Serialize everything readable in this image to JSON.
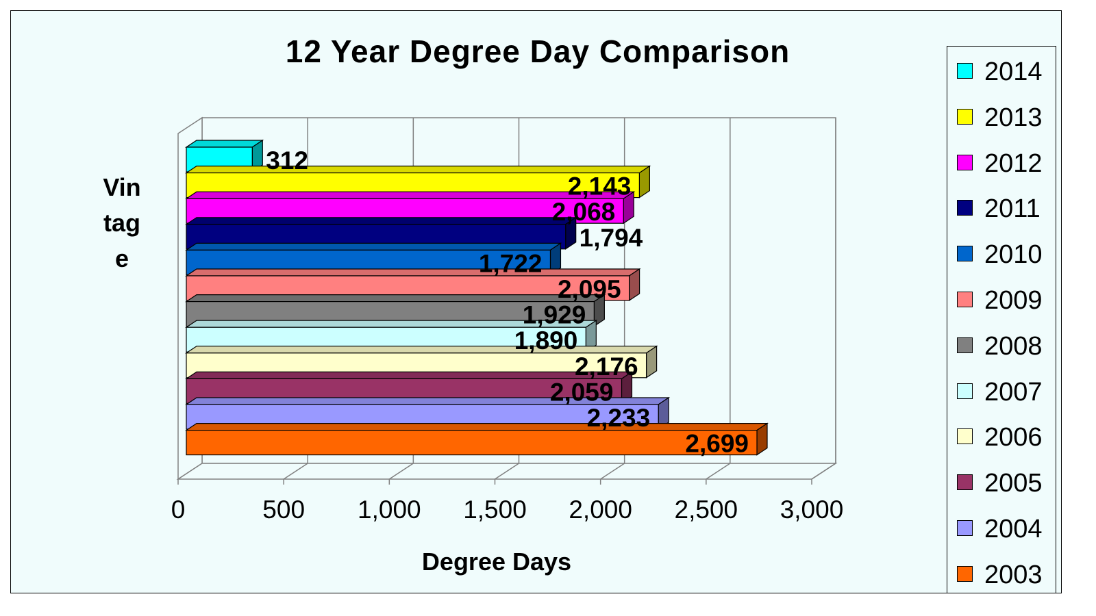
{
  "chart_data": {
    "type": "bar",
    "orientation": "horizontal",
    "title": "12 Year Degree Day Comparison",
    "xlabel": "Degree Days",
    "ylabel": "Vintage",
    "xlim": [
      0,
      3000
    ],
    "x_ticks": [
      "0",
      "500",
      "1,000",
      "1,500",
      "2,000",
      "2,500",
      "3,000"
    ],
    "grid": true,
    "legend_position": "right",
    "series": [
      {
        "name": "2014",
        "value": 312,
        "label": "312",
        "color": "#00ffff"
      },
      {
        "name": "2013",
        "value": 2143,
        "label": "2,143",
        "color": "#ffff00"
      },
      {
        "name": "2012",
        "value": 2068,
        "label": "2,068",
        "color": "#ff00ff"
      },
      {
        "name": "2011",
        "value": 1794,
        "label": "1,794",
        "color": "#000080"
      },
      {
        "name": "2010",
        "value": 1722,
        "label": "1,722",
        "color": "#0066cc"
      },
      {
        "name": "2009",
        "value": 2095,
        "label": "2,095",
        "color": "#ff8080"
      },
      {
        "name": "2008",
        "value": 1929,
        "label": "1,929",
        "color": "#808080"
      },
      {
        "name": "2007",
        "value": 1890,
        "label": "1,890",
        "color": "#ccffff"
      },
      {
        "name": "2006",
        "value": 2176,
        "label": "2,176",
        "color": "#ffffcc"
      },
      {
        "name": "2005",
        "value": 2059,
        "label": "2,059",
        "color": "#993366"
      },
      {
        "name": "2004",
        "value": 2233,
        "label": "2,233",
        "color": "#9999ff"
      },
      {
        "name": "2003",
        "value": 2699,
        "label": "2,699",
        "color": "#ff6600"
      }
    ]
  }
}
